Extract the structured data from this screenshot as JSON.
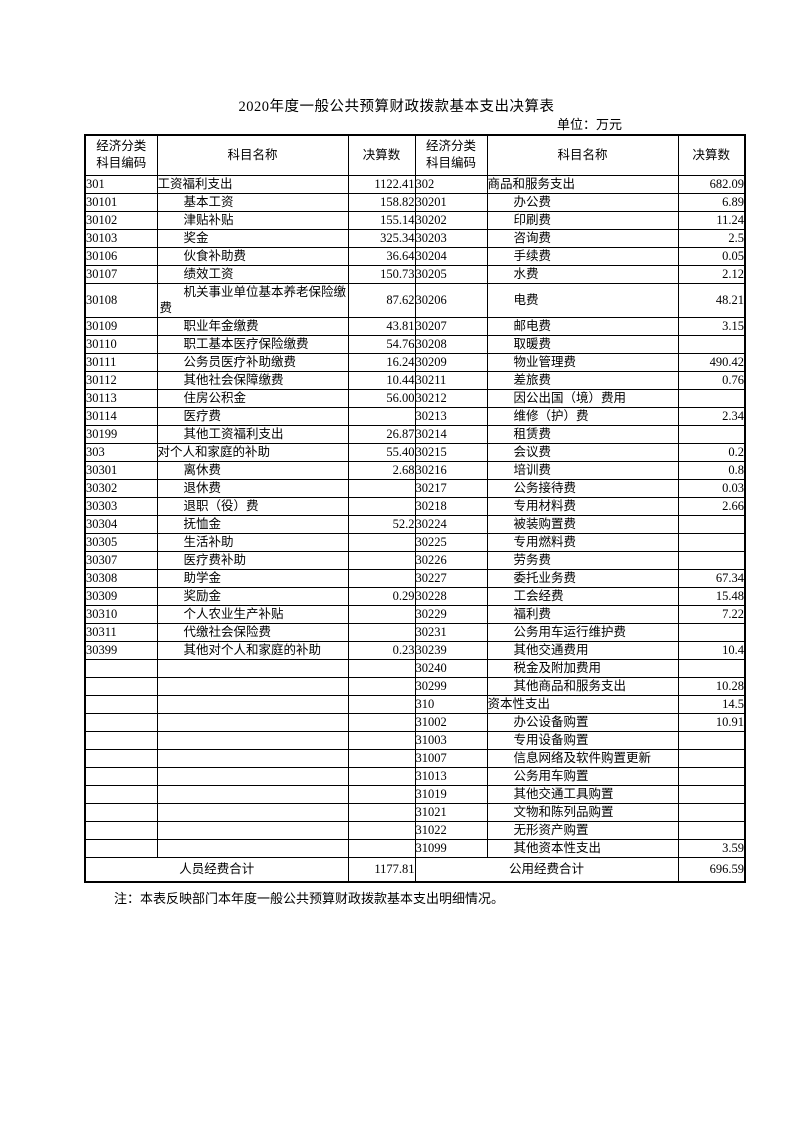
{
  "page": {
    "title": "2020年度一般公共预算财政拨款基本支出决算表",
    "unit_label": "单位：万元",
    "note": "注：本表反映部门本年度一般公共预算财政拨款基本支出明细情况。"
  },
  "table": {
    "header": {
      "code": "经济分类\n科目编码",
      "name": "科目名称",
      "amount": "决算数"
    },
    "rows": [
      {
        "lc": "301",
        "ln": "工资福利支出",
        "lv": "1122.41",
        "rc": "302",
        "rn": "商品和服务支出",
        "rv": "682.09"
      },
      {
        "lc": "30101",
        "ln": "基本工资",
        "lv": "158.82",
        "rc": "30201",
        "rn": "办公费",
        "rv": "6.89"
      },
      {
        "lc": "30102",
        "ln": "津贴补贴",
        "lv": "155.14",
        "rc": "30202",
        "rn": "印刷费",
        "rv": "11.24"
      },
      {
        "lc": "30103",
        "ln": "奖金",
        "lv": "325.34",
        "rc": "30203",
        "rn": "咨询费",
        "rv": "2.5"
      },
      {
        "lc": "30106",
        "ln": "伙食补助费",
        "lv": "36.64",
        "rc": "30204",
        "rn": "手续费",
        "rv": "0.05"
      },
      {
        "lc": "30107",
        "ln": "绩效工资",
        "lv": "150.73",
        "rc": "30205",
        "rn": "水费",
        "rv": "2.12"
      },
      {
        "lc": "30108",
        "ln": "机关事业单位基本养老保险缴费",
        "lv": "87.62",
        "rc": "30206",
        "rn": "电费",
        "rv": "48.21"
      },
      {
        "lc": "30109",
        "ln": "职业年金缴费",
        "lv": "43.81",
        "rc": "30207",
        "rn": "邮电费",
        "rv": "3.15"
      },
      {
        "lc": "30110",
        "ln": "职工基本医疗保险缴费",
        "lv": "54.76",
        "rc": "30208",
        "rn": "取暖费",
        "rv": ""
      },
      {
        "lc": "30111",
        "ln": "公务员医疗补助缴费",
        "lv": "16.24",
        "rc": "30209",
        "rn": "物业管理费",
        "rv": "490.42"
      },
      {
        "lc": "30112",
        "ln": "其他社会保障缴费",
        "lv": "10.44",
        "rc": "30211",
        "rn": "差旅费",
        "rv": "0.76"
      },
      {
        "lc": "30113",
        "ln": "住房公积金",
        "lv": "56.00",
        "rc": "30212",
        "rn": "因公出国（境）费用",
        "rv": ""
      },
      {
        "lc": "30114",
        "ln": "医疗费",
        "lv": "",
        "rc": "30213",
        "rn": "维修（护）费",
        "rv": "2.34"
      },
      {
        "lc": "30199",
        "ln": "其他工资福利支出",
        "lv": "26.87",
        "rc": "30214",
        "rn": "租赁费",
        "rv": ""
      },
      {
        "lc": "303",
        "ln": "对个人和家庭的补助",
        "lv": "55.40",
        "rc": "30215",
        "rn": "会议费",
        "rv": "0.2"
      },
      {
        "lc": "30301",
        "ln": "离休费",
        "lv": "2.68",
        "rc": "30216",
        "rn": "培训费",
        "rv": "0.8"
      },
      {
        "lc": "30302",
        "ln": "退休费",
        "lv": "",
        "rc": "30217",
        "rn": "公务接待费",
        "rv": "0.03"
      },
      {
        "lc": "30303",
        "ln": "退职（役）费",
        "lv": "",
        "rc": "30218",
        "rn": "专用材料费",
        "rv": "2.66"
      },
      {
        "lc": "30304",
        "ln": "抚恤金",
        "lv": "52.2",
        "rc": "30224",
        "rn": "被装购置费",
        "rv": ""
      },
      {
        "lc": "30305",
        "ln": "生活补助",
        "lv": "",
        "rc": "30225",
        "rn": "专用燃料费",
        "rv": ""
      },
      {
        "lc": "30307",
        "ln": "医疗费补助",
        "lv": "",
        "rc": "30226",
        "rn": "劳务费",
        "rv": ""
      },
      {
        "lc": "30308",
        "ln": "助学金",
        "lv": "",
        "rc": "30227",
        "rn": "委托业务费",
        "rv": "67.34"
      },
      {
        "lc": "30309",
        "ln": "奖励金",
        "lv": "0.29",
        "rc": "30228",
        "rn": "工会经费",
        "rv": "15.48"
      },
      {
        "lc": "30310",
        "ln": "个人农业生产补贴",
        "lv": "",
        "rc": "30229",
        "rn": "福利费",
        "rv": "7.22"
      },
      {
        "lc": "30311",
        "ln": "代缴社会保险费",
        "lv": "",
        "rc": "30231",
        "rn": "公务用车运行维护费",
        "rv": ""
      },
      {
        "lc": "30399",
        "ln": "其他对个人和家庭的补助",
        "lv": "0.23",
        "rc": "30239",
        "rn": "其他交通费用",
        "rv": "10.4"
      },
      {
        "lc": "",
        "ln": "",
        "lv": "",
        "rc": "30240",
        "rn": "税金及附加费用",
        "rv": ""
      },
      {
        "lc": "",
        "ln": "",
        "lv": "",
        "rc": "30299",
        "rn": "其他商品和服务支出",
        "rv": "10.28"
      },
      {
        "lc": "",
        "ln": "",
        "lv": "",
        "rc": "310",
        "rn": "资本性支出",
        "rv": "14.5"
      },
      {
        "lc": "",
        "ln": "",
        "lv": "",
        "rc": "31002",
        "rn": "办公设备购置",
        "rv": "10.91"
      },
      {
        "lc": "",
        "ln": "",
        "lv": "",
        "rc": "31003",
        "rn": "专用设备购置",
        "rv": ""
      },
      {
        "lc": "",
        "ln": "",
        "lv": "",
        "rc": "31007",
        "rn": "信息网络及软件购置更新",
        "rv": ""
      },
      {
        "lc": "",
        "ln": "",
        "lv": "",
        "rc": "31013",
        "rn": "公务用车购置",
        "rv": ""
      },
      {
        "lc": "",
        "ln": "",
        "lv": "",
        "rc": "31019",
        "rn": "其他交通工具购置",
        "rv": ""
      },
      {
        "lc": "",
        "ln": "",
        "lv": "",
        "rc": "31021",
        "rn": "文物和陈列品购置",
        "rv": ""
      },
      {
        "lc": "",
        "ln": "",
        "lv": "",
        "rc": "31022",
        "rn": "无形资产购置",
        "rv": ""
      },
      {
        "lc": "",
        "ln": "",
        "lv": "",
        "rc": "31099",
        "rn": "其他资本性支出",
        "rv": "3.59"
      }
    ],
    "footer": {
      "left_label": "人员经费合计",
      "left_value": "1177.81",
      "right_label": "公用经费合计",
      "right_value": "696.59"
    }
  }
}
